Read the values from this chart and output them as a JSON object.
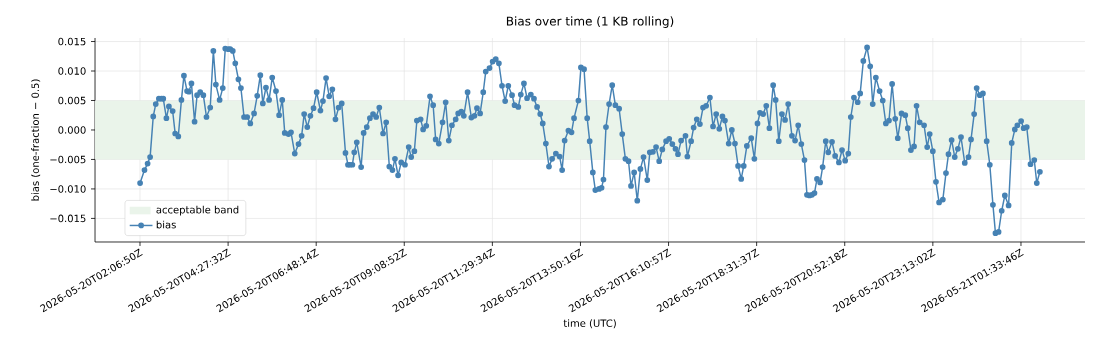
{
  "chart_data": {
    "type": "line",
    "title": "Bias over time (1 KB rolling)",
    "xlabel": "time (UTC)",
    "ylabel": "bias (one-fraction − 0.5)",
    "x": [
      "2026-05-20T02:07",
      "2026-05-20T02:14",
      "2026-05-20T02:19",
      "2026-05-20T02:23",
      "2026-05-20T02:28",
      "2026-05-20T02:32",
      "2026-05-20T02:37",
      "2026-05-20T02:41",
      "2026-05-20T02:44",
      "2026-05-20T02:49",
      "2026-05-20T02:53",
      "2026-05-20T02:59",
      "2026-05-20T03:03",
      "2026-05-20T03:08",
      "2026-05-20T03:13",
      "2026-05-20T03:17",
      "2026-05-20T03:22",
      "2026-05-20T03:25",
      "2026-05-20T03:29",
      "2026-05-20T03:34",
      "2026-05-20T03:38",
      "2026-05-20T03:43",
      "2026-05-20T03:48",
      "2026-05-20T03:53",
      "2026-05-20T03:59",
      "2026-05-20T04:04",
      "2026-05-20T04:08",
      "2026-05-20T04:14",
      "2026-05-20T04:19",
      "2026-05-20T04:23",
      "2026-05-20T04:28",
      "2026-05-20T04:31",
      "2026-05-20T04:35",
      "2026-05-20T04:39",
      "2026-05-20T04:44",
      "2026-05-20T04:48",
      "2026-05-20T04:53",
      "2026-05-20T04:58",
      "2026-05-20T05:03",
      "2026-05-20T05:09",
      "2026-05-20T05:14",
      "2026-05-20T05:19",
      "2026-05-20T05:23",
      "2026-05-20T05:28",
      "2026-05-20T05:33",
      "2026-05-20T05:38",
      "2026-05-20T05:44",
      "2026-05-20T05:49",
      "2026-05-20T05:54",
      "2026-05-20T05:58",
      "2026-05-20T06:04",
      "2026-05-20T06:08",
      "2026-05-20T06:14",
      "2026-05-20T06:20",
      "2026-05-20T06:25",
      "2026-05-20T06:29",
      "2026-05-20T06:34",
      "2026-05-20T06:39",
      "2026-05-20T06:44",
      "2026-05-20T06:49",
      "2026-05-20T06:55",
      "2026-05-20T06:59",
      "2026-05-20T07:04",
      "2026-05-20T07:09",
      "2026-05-20T07:14",
      "2026-05-20T07:19",
      "2026-05-20T07:24",
      "2026-05-20T07:29",
      "2026-05-20T07:35",
      "2026-05-20T07:39",
      "2026-05-20T07:42",
      "2026-05-20T07:46",
      "2026-05-20T07:49",
      "2026-05-20T07:53",
      "2026-05-20T08:00",
      "2026-05-20T08:04",
      "2026-05-20T08:09",
      "2026-05-20T08:14",
      "2026-05-20T08:19",
      "2026-05-20T08:24",
      "2026-05-20T08:29",
      "2026-05-20T08:35",
      "2026-05-20T08:40",
      "2026-05-20T08:45",
      "2026-05-20T08:50",
      "2026-05-20T08:54",
      "2026-05-20T08:59",
      "2026-05-20T09:04",
      "2026-05-20T09:10",
      "2026-05-20T09:16",
      "2026-05-20T09:20",
      "2026-05-20T09:25",
      "2026-05-20T09:29",
      "2026-05-20T09:35",
      "2026-05-20T09:39",
      "2026-05-20T09:44",
      "2026-05-20T09:50",
      "2026-05-20T09:55",
      "2026-05-20T09:59",
      "2026-05-20T10:04",
      "2026-05-20T10:10",
      "2026-05-20T10:15",
      "2026-05-20T10:20",
      "2026-05-20T10:25",
      "2026-05-20T10:31",
      "2026-05-20T10:35",
      "2026-05-20T10:40",
      "2026-05-20T10:44",
      "2026-05-20T10:50",
      "2026-05-20T10:56",
      "2026-05-20T11:01",
      "2026-05-20T11:05",
      "2026-05-20T11:10",
      "2026-05-20T11:15",
      "2026-05-20T11:19",
      "2026-05-20T11:25",
      "2026-05-20T11:30",
      "2026-05-20T11:35",
      "2026-05-20T11:40",
      "2026-05-20T11:45",
      "2026-05-20T11:50",
      "2026-05-20T11:55",
      "2026-05-20T12:01",
      "2026-05-20T12:05",
      "2026-05-20T12:11",
      "2026-05-20T12:15",
      "2026-05-20T12:20",
      "2026-05-20T12:25",
      "2026-05-20T12:31",
      "2026-05-20T12:36",
      "2026-05-20T12:41",
      "2026-05-20T12:46",
      "2026-05-20T12:50",
      "2026-05-20T12:55",
      "2026-05-20T13:00",
      "2026-05-20T13:05",
      "2026-05-20T13:11",
      "2026-05-20T13:17",
      "2026-05-20T13:21",
      "2026-05-20T13:25",
      "2026-05-20T13:31",
      "2026-05-20T13:36",
      "2026-05-20T13:40",
      "2026-05-20T13:47",
      "2026-05-20T13:51",
      "2026-05-20T13:56",
      "2026-05-20T14:01",
      "2026-05-20T14:05",
      "2026-05-20T14:10",
      "2026-05-20T14:14",
      "2026-05-20T14:20",
      "2026-05-20T14:24",
      "2026-05-20T14:27",
      "2026-05-20T14:31",
      "2026-05-20T14:36",
      "2026-05-20T14:41",
      "2026-05-20T14:46",
      "2026-05-20T14:52",
      "2026-05-20T14:57",
      "2026-05-20T15:02",
      "2026-05-20T15:07",
      "2026-05-20T15:11",
      "2026-05-20T15:16",
      "2026-05-20T15:21",
      "2026-05-20T15:26",
      "2026-05-20T15:31",
      "2026-05-20T15:37",
      "2026-05-20T15:41",
      "2026-05-20T15:46",
      "2026-05-20T15:51",
      "2026-05-20T15:56",
      "2026-05-20T16:01",
      "2026-05-20T16:07",
      "2026-05-20T16:12",
      "2026-05-20T16:17",
      "2026-05-20T16:22",
      "2026-05-20T16:26",
      "2026-05-20T16:31",
      "2026-05-20T16:38",
      "2026-05-20T16:41",
      "2026-05-20T16:47",
      "2026-05-20T16:51",
      "2026-05-20T16:56",
      "2026-05-20T17:01",
      "2026-05-20T17:06",
      "2026-05-20T17:11",
      "2026-05-20T17:17",
      "2026-05-20T17:22",
      "2026-05-20T17:27",
      "2026-05-20T17:32",
      "2026-05-20T17:37",
      "2026-05-20T17:41",
      "2026-05-20T17:47",
      "2026-05-20T17:52",
      "2026-05-20T17:57",
      "2026-05-20T18:02",
      "2026-05-20T18:07",
      "2026-05-20T18:11",
      "2026-05-20T18:16",
      "2026-05-20T18:23",
      "2026-05-20T18:28",
      "2026-05-20T18:33",
      "2026-05-20T18:37",
      "2026-05-20T18:42",
      "2026-05-20T18:47",
      "2026-05-20T18:52",
      "2026-05-20T18:58",
      "2026-05-20T19:02",
      "2026-05-20T19:07",
      "2026-05-20T19:12",
      "2026-05-20T19:17",
      "2026-05-20T19:22",
      "2026-05-20T19:28",
      "2026-05-20T19:33",
      "2026-05-20T19:38",
      "2026-05-20T19:43",
      "2026-05-20T19:48",
      "2026-05-20T19:52",
      "2026-05-20T19:56",
      "2026-05-20T20:00",
      "2026-05-20T20:04",
      "2026-05-20T20:08",
      "2026-05-20T20:13",
      "2026-05-20T20:17",
      "2026-05-20T20:22",
      "2026-05-20T20:26",
      "2026-05-20T20:32",
      "2026-05-20T20:37",
      "2026-05-20T20:43",
      "2026-05-20T20:48",
      "2026-05-20T20:53",
      "2026-05-20T20:58",
      "2026-05-20T21:02",
      "2026-05-20T21:07",
      "2026-05-20T21:13",
      "2026-05-20T21:17",
      "2026-05-20T21:22",
      "2026-05-20T21:28",
      "2026-05-20T21:33",
      "2026-05-20T21:37",
      "2026-05-20T21:42",
      "2026-05-20T21:48",
      "2026-05-20T21:53",
      "2026-05-20T21:58",
      "2026-05-20T22:03",
      "2026-05-20T22:08",
      "2026-05-20T22:13",
      "2026-05-20T22:17",
      "2026-05-20T22:23",
      "2026-05-20T22:29",
      "2026-05-20T22:33",
      "2026-05-20T22:38",
      "2026-05-20T22:43",
      "2026-05-20T22:47",
      "2026-05-20T22:52",
      "2026-05-20T22:59",
      "2026-05-20T23:04",
      "2026-05-20T23:08",
      "2026-05-20T23:13",
      "2026-05-20T23:18",
      "2026-05-20T23:23",
      "2026-05-20T23:29",
      "2026-05-20T23:34",
      "2026-05-20T23:38",
      "2026-05-20T23:43",
      "2026-05-20T23:48",
      "2026-05-20T23:53",
      "2026-05-20T23:58",
      "2026-05-21T00:04",
      "2026-05-21T00:10",
      "2026-05-21T00:14",
      "2026-05-21T00:19",
      "2026-05-21T00:23",
      "2026-05-21T00:28",
      "2026-05-21T00:33",
      "2026-05-21T00:39",
      "2026-05-21T00:44",
      "2026-05-21T00:49",
      "2026-05-21T00:53",
      "2026-05-21T00:58",
      "2026-05-21T01:03",
      "2026-05-21T01:08",
      "2026-05-21T01:14",
      "2026-05-21T01:19",
      "2026-05-21T01:24",
      "2026-05-21T01:28",
      "2026-05-21T01:34",
      "2026-05-21T01:38",
      "2026-05-21T01:43",
      "2026-05-21T01:49",
      "2026-05-21T01:55",
      "2026-05-21T01:59",
      "2026-05-21T02:04"
    ],
    "series": [
      {
        "name": "bias",
        "color": "#4682b4",
        "values": [
          -0.009,
          -0.0068,
          -0.0057,
          -0.0046,
          0.0023,
          0.0044,
          0.0053,
          0.0053,
          0.0053,
          0.002,
          0.004,
          0.0032,
          -0.0006,
          -0.0011,
          0.0051,
          0.0092,
          0.0066,
          0.0065,
          0.0079,
          0.0014,
          0.0059,
          0.0064,
          0.0059,
          0.0022,
          0.0038,
          0.0134,
          0.0077,
          0.0051,
          0.0071,
          0.0138,
          0.0137,
          0.0137,
          0.0134,
          0.0113,
          0.0086,
          0.0071,
          0.0022,
          0.0022,
          0.0011,
          0.0028,
          0.0058,
          0.0093,
          0.0045,
          0.0072,
          0.0051,
          0.0089,
          0.0066,
          0.0025,
          0.0051,
          -0.0005,
          -0.0007,
          -0.0004,
          -0.004,
          -0.0024,
          -0.001,
          0.0027,
          0.0005,
          0.0024,
          0.0037,
          0.0064,
          0.0033,
          0.0049,
          0.0088,
          0.0057,
          0.0069,
          0.0018,
          0.0038,
          0.0045,
          -0.0039,
          -0.0059,
          -0.0059,
          -0.0059,
          -0.0038,
          -0.0021,
          -0.0063,
          -0.0005,
          0.0005,
          0.002,
          0.0027,
          0.0022,
          0.0038,
          -0.0006,
          0.0013,
          -0.0062,
          -0.0068,
          -0.0049,
          -0.0077,
          -0.0055,
          -0.0059,
          -0.0029,
          -0.0046,
          -0.0036,
          0.0016,
          0.0018,
          0.0001,
          0.0007,
          0.0057,
          0.0042,
          -0.0016,
          -0.0023,
          0.0013,
          0.0047,
          -0.0018,
          0.0008,
          0.0018,
          0.0028,
          0.0031,
          0.0024,
          0.0064,
          0.0021,
          0.0024,
          0.0037,
          0.0028,
          0.0064,
          0.0099,
          0.0105,
          0.0116,
          0.012,
          0.0113,
          0.0075,
          0.0049,
          0.0075,
          0.0059,
          0.0042,
          0.0039,
          0.006,
          0.0079,
          0.0054,
          0.006,
          0.0053,
          0.0039,
          0.0027,
          0.0011,
          -0.0023,
          -0.0062,
          -0.0049,
          -0.004,
          -0.0045,
          -0.0068,
          -0.0018,
          -0.0001,
          -0.0004,
          0.002,
          0.005,
          0.0106,
          0.0103,
          0.002,
          -0.0019,
          -0.0072,
          -0.0102,
          -0.01,
          -0.0098,
          -0.0084,
          0.0005,
          0.0044,
          0.0076,
          0.0042,
          0.0036,
          -0.0007,
          -0.0049,
          -0.0053,
          -0.0095,
          -0.0072,
          -0.012,
          -0.0066,
          -0.0046,
          -0.0085,
          -0.0038,
          -0.0037,
          -0.0029,
          -0.0053,
          -0.0033,
          -0.0019,
          -0.0015,
          -0.0024,
          -0.0032,
          -0.0041,
          -0.0018,
          -0.001,
          -0.0045,
          -0.0019,
          0.0004,
          0.0018,
          0.001,
          0.0038,
          0.0041,
          0.0055,
          0.0006,
          0.0027,
          0.0002,
          0.0023,
          0.0016,
          -0.0023,
          0,
          -0.0023,
          -0.0061,
          -0.0083,
          -0.0061,
          -0.0027,
          -0.0014,
          -0.0049,
          0.0011,
          0.0029,
          0.0027,
          0.0041,
          0.0003,
          0.0076,
          0.0051,
          -0.0019,
          0.0027,
          0.0017,
          0.0044,
          -0.001,
          -0.0018,
          0.0008,
          -0.0024,
          -0.0051,
          -0.011,
          -0.0111,
          -0.011,
          -0.0107,
          -0.0083,
          -0.0089,
          -0.0063,
          -0.0019,
          -0.0038,
          -0.002,
          -0.0044,
          -0.0055,
          -0.0034,
          -0.0052,
          -0.004,
          0.0022,
          0.0055,
          0.0047,
          0.0062,
          0.0117,
          0.014,
          0.0108,
          0.0044,
          0.0089,
          0.0066,
          0.005,
          0.0011,
          0.0016,
          0.0078,
          0.0019,
          -0.0014,
          0.0028,
          0.0025,
          0.0003,
          -0.0034,
          -0.0028,
          0.0041,
          0.0013,
          0.0008,
          -0.0029,
          -0.0007,
          -0.0036,
          -0.0088,
          -0.0123,
          -0.0118,
          -0.0073,
          -0.0041,
          -0.0017,
          -0.0046,
          -0.0032,
          -0.0012,
          -0.0056,
          -0.0046,
          -0.0016,
          0.0027,
          0.0071,
          0.0059,
          0.0062,
          -0.0019,
          -0.0059,
          -0.0127,
          -0.0175,
          -0.0173,
          -0.0137,
          -0.0111,
          -0.0128,
          -0.0022,
          0.0001,
          0.0008,
          0.0015,
          0.0003,
          0.0005,
          -0.0058,
          -0.0051,
          -0.009,
          -0.0071
        ]
      }
    ],
    "bands": [
      {
        "axis": "y",
        "from": -0.005,
        "to": 0.005,
        "label": "acceptable band",
        "color": "#eaf4ea"
      }
    ],
    "xlim": [
      "2026-05-20T00:55",
      "2026-05-21T03:16"
    ],
    "ylim": [
      -0.019,
      0.0156
    ],
    "xticks": [
      {
        "value": "2026-05-20T02:06:50",
        "label": "2026-05-20T02:06:50Z"
      },
      {
        "value": "2026-05-20T04:27:32",
        "label": "2026-05-20T04:27:32Z"
      },
      {
        "value": "2026-05-20T06:48:14",
        "label": "2026-05-20T06:48:14Z"
      },
      {
        "value": "2026-05-20T09:08:52",
        "label": "2026-05-20T09:08:52Z"
      },
      {
        "value": "2026-05-20T11:29:34",
        "label": "2026-05-20T11:29:34Z"
      },
      {
        "value": "2026-05-20T13:50:16",
        "label": "2026-05-20T13:50:16Z"
      },
      {
        "value": "2026-05-20T16:10:57",
        "label": "2026-05-20T16:10:57Z"
      },
      {
        "value": "2026-05-20T18:31:37",
        "label": "2026-05-20T18:31:37Z"
      },
      {
        "value": "2026-05-20T20:52:18",
        "label": "2026-05-20T20:52:18Z"
      },
      {
        "value": "2026-05-20T23:13:02",
        "label": "2026-05-20T23:13:02Z"
      },
      {
        "value": "2026-05-21T01:33:46",
        "label": "2026-05-21T01:33:46Z"
      }
    ],
    "yticks": [
      {
        "value": -0.015,
        "label": "−0.015"
      },
      {
        "value": -0.01,
        "label": "−0.010"
      },
      {
        "value": -0.005,
        "label": "−0.005"
      },
      {
        "value": 0,
        "label": "0.000"
      },
      {
        "value": 0.005,
        "label": "0.005"
      },
      {
        "value": 0.01,
        "label": "0.010"
      },
      {
        "value": 0.015,
        "label": "0.015"
      }
    ],
    "grid": true,
    "legend": "bottom left",
    "marker": "circle",
    "line_style": "solid"
  }
}
